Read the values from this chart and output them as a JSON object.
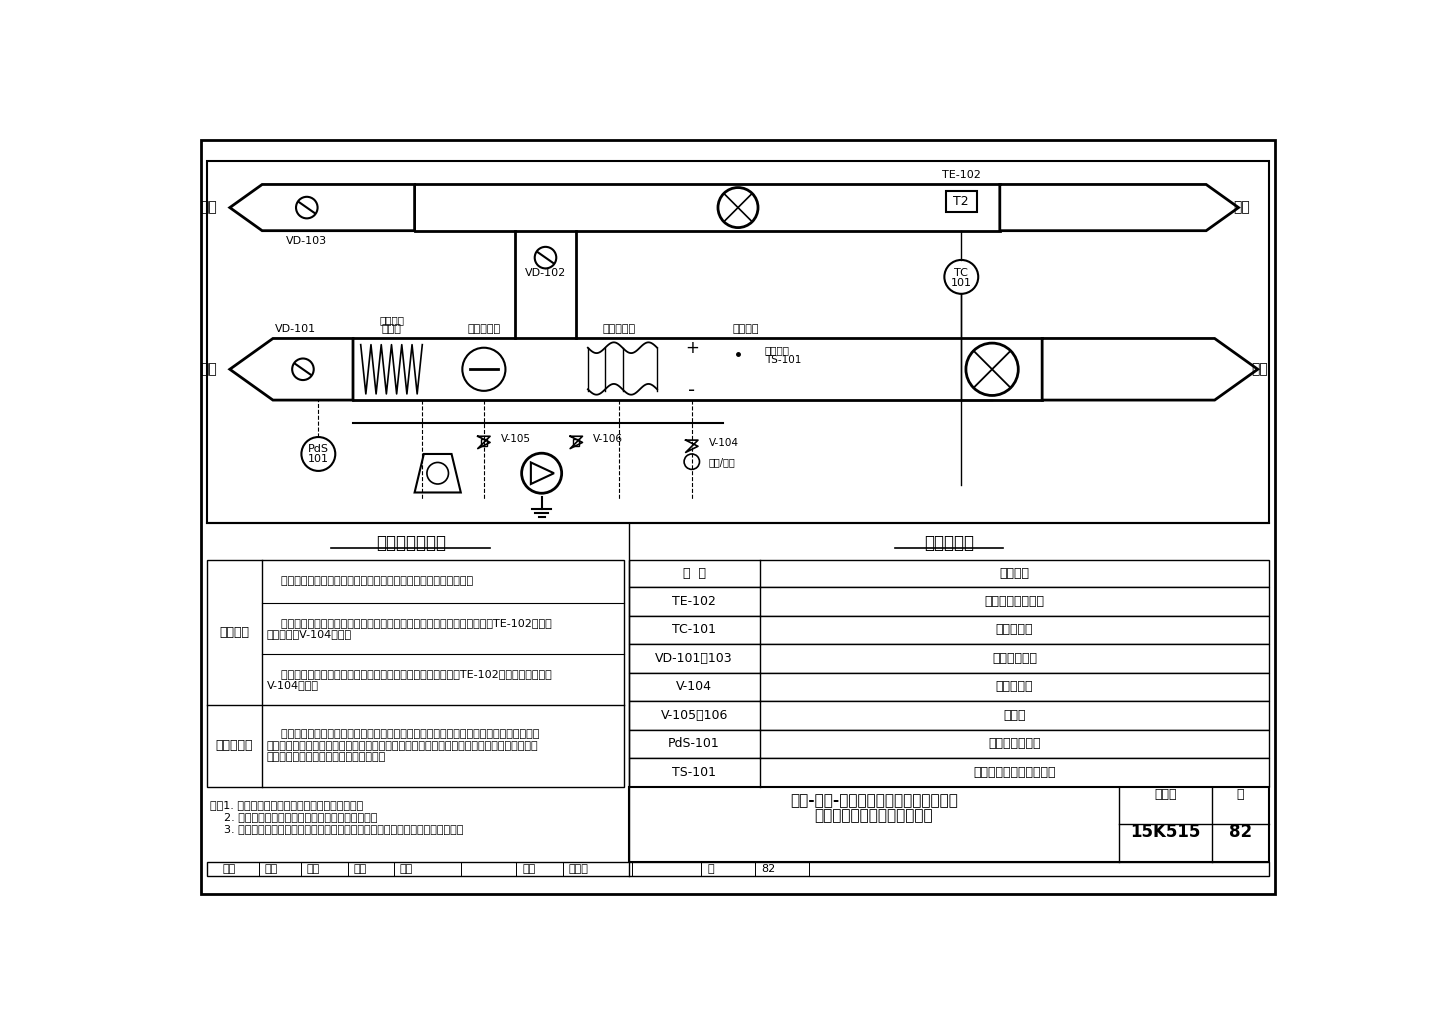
{
  "bg_color": "#ffffff",
  "title_main": "间接-直接-机械制冷三级全空气蒸发冷却",
  "title_sub": "通风空调系统控制互连接线图",
  "atlas_no_label": "图集号",
  "atlas_no_value": "15K515",
  "page_label": "页",
  "page_value": "82",
  "control_title": "控制说明及要求",
  "equip_title": "外部设备表",
  "col_symbol": "符  号",
  "col_name": "器件名称",
  "equip_rows": [
    [
      "TE-102",
      "风管式温度传感器"
    ],
    [
      "TC-101",
      "温度控制器"
    ],
    [
      "VD-101～103",
      "电动调节风阀"
    ],
    [
      "V-104",
      "电动调节阀"
    ],
    [
      "V-105～106",
      "电磁阀"
    ],
    [
      "PdS-101",
      "过滤器堵塞信号"
    ],
    [
      "TS-101",
      "防冻开关（带手动复位）"
    ]
  ],
  "work_principle_label": "工作原理",
  "interlock_label": "联锁及保护",
  "work_text1": "    过渡季使用全新风，考虑外温度较高需同时开启直接蒸发冷却段。",
  "work_text2": "    夏季关闭回风，关闭直接蒸发，开启间接蒸发段，室内温度由温度传感器TE-102控制表\n冷段调节阀V-104调节。",
  "work_text3": "    冬季开回风阀，直接蒸发段用于加温，室温由回风温度传感器TE-102控制加热段调节阀\nV-104调节。",
  "interlock_text": "    风机启停、风阀、电动调节阀联动开闭，风机启动后，其两侧压差低于某设定值时，故障\n报警并停机，过滤器两侧之压差过高超过设定值时，自动报警，查管出口处设置的防冻开关，\n温度低于设定值时，报警并开大热水阀。",
  "note_text": "注：1. 此种形式的空调机组通常生潮湿地区使用。\n    2. 在冬季寒冷地区使用需考虑室外空气预热措施。\n    3. 间接蒸发冷却段还有其他形式，如间接段为盘管等，其控制方式会略有不同。",
  "sig_items": [
    "审核",
    "汪超",
    "沈起",
    "校对",
    "薛晓",
    "",
    "设计",
    "强天伟",
    "",
    "页",
    "82"
  ]
}
